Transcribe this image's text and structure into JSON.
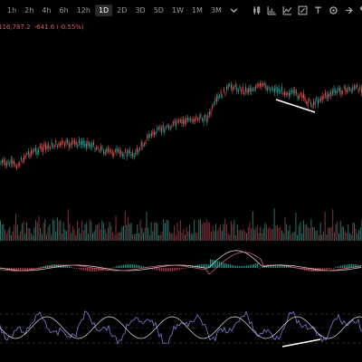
{
  "toolbar": {
    "timeframes": [
      "1h",
      "2h",
      "4h",
      "6h",
      "12h",
      "1D",
      "2D",
      "3D",
      "5D",
      "1W",
      "1M",
      "3M"
    ],
    "active": "1D",
    "dropdown_icon": "chevron-down-icon",
    "icons": [
      "candlestick-icon",
      "bar-chart-icon",
      "line-chart-icon",
      "draw-tool-icon",
      "text-icon",
      "settings-icon",
      "share-icon",
      "replay-icon"
    ]
  },
  "ticker": {
    "price": "116,787.2",
    "change": "-641.6 (-0.55%)"
  },
  "colors": {
    "up": "#26a69a",
    "down": "#ef5350",
    "background": "#000000",
    "oscillator": "#7b7bd8",
    "annotation": "#ffffff"
  }
}
